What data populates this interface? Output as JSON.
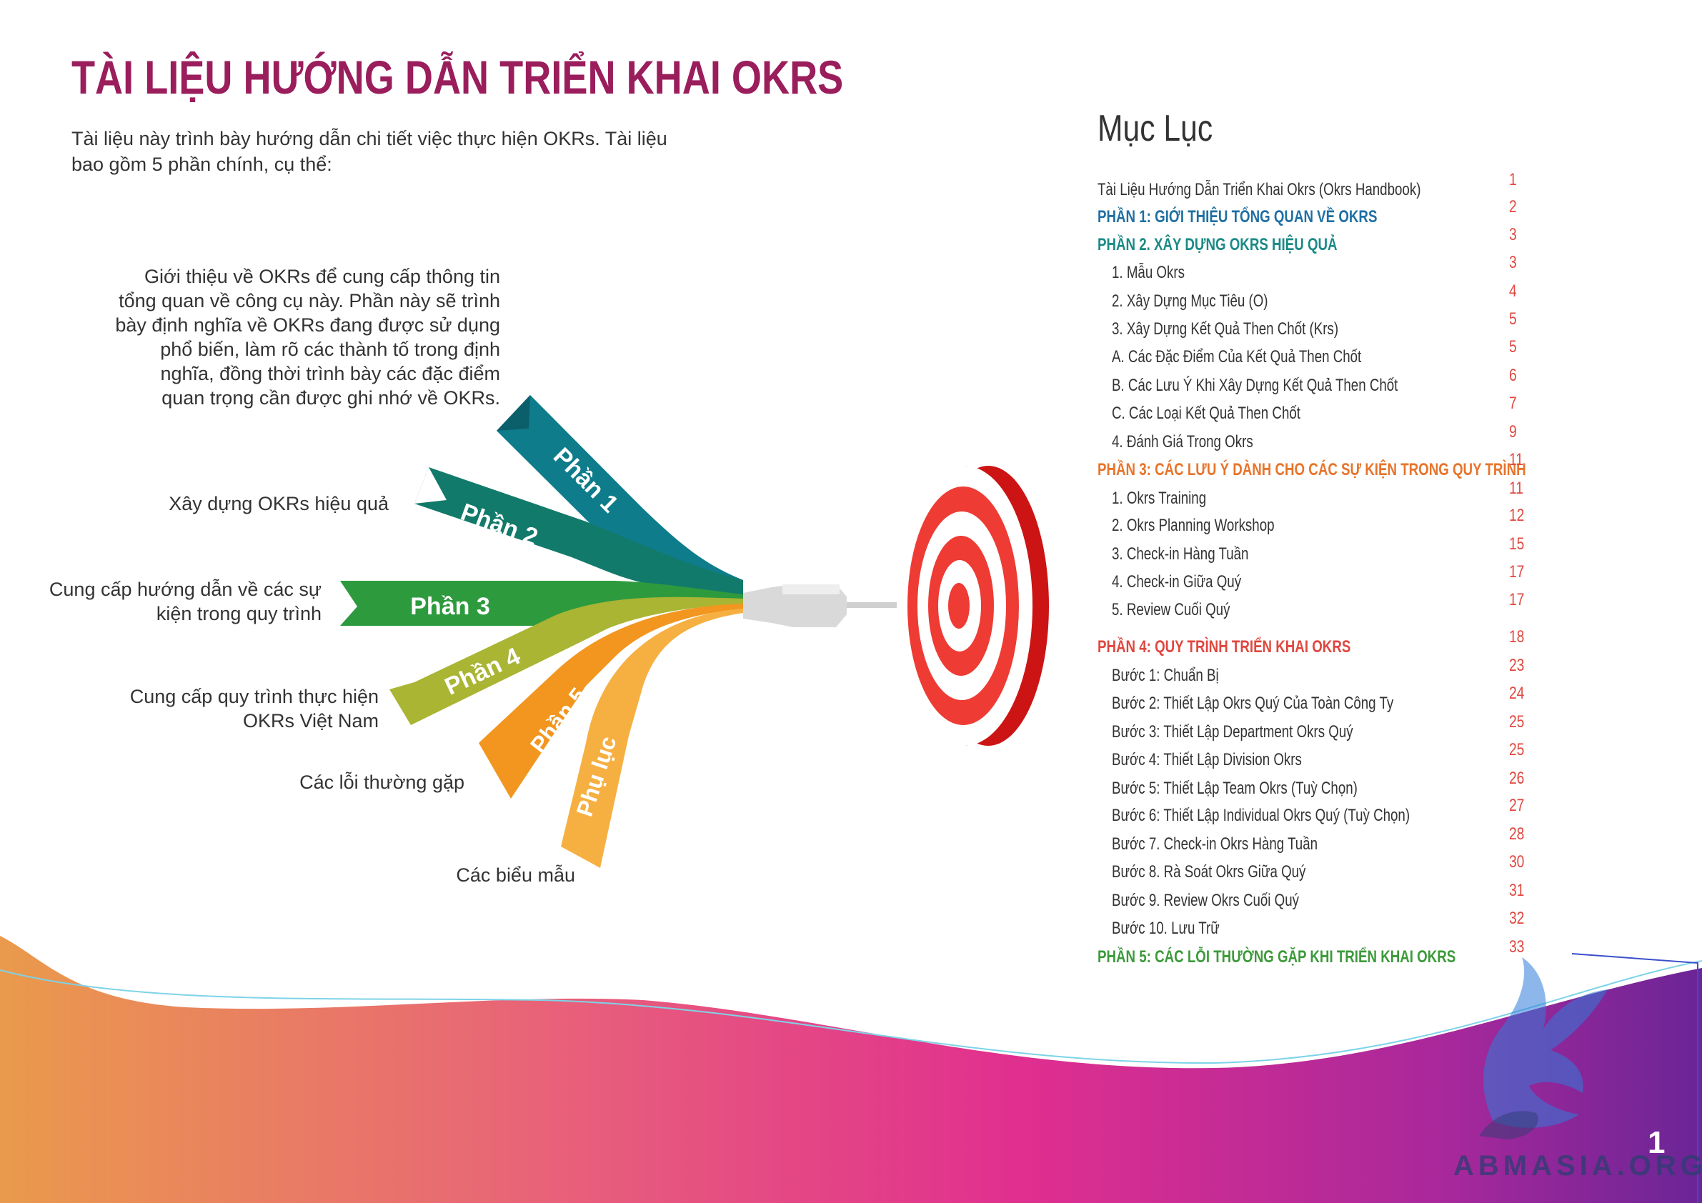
{
  "title": "TÀI LIỆU HƯỚNG DẪN TRIỂN KHAI OKRS",
  "intro": "Tài liệu này trình bày hướng dẫn chi tiết việc thực hiện OKRs. Tài liệu bao gồm 5 phần chính, cụ thể:",
  "colors": {
    "title": "#9a1d5c",
    "part1": "#0e7c8a",
    "part2": "#127a6a",
    "part3": "#2e9a3e",
    "part4": "#a9b533",
    "part5": "#f2961f",
    "appendix": "#f6b042",
    "toc_blue": "#1f6fa3",
    "toc_teal": "#1a8a86",
    "toc_orange": "#e8742a",
    "toc_red": "#e0473f",
    "toc_green": "#3c9a3a"
  },
  "ribbons": {
    "part1": "Phần 1",
    "part2": "Phần 2",
    "part3": "Phần 3",
    "part4": "Phần 4",
    "part5": "Phần 5",
    "appendix": "Phụ lục"
  },
  "descriptions": {
    "part1": [
      "Giới thiệu về OKRs để cung cấp thông tin",
      "tổng quan về công cụ này. Phần này sẽ trình",
      "bày định nghĩa về OKRs đang được sử dụng",
      "phổ biến, làm rõ các thành tố trong định",
      "nghĩa, đồng thời trình bày các đặc điểm",
      "quan trọng cần được ghi nhớ về OKRs."
    ],
    "part2": [
      "Xây dựng OKRs hiệu quả"
    ],
    "part3": [
      "Cung cấp hướng dẫn về các sự",
      "kiện trong quy trình"
    ],
    "part4": [
      "Cung cấp quy trình thực hiện",
      "OKRs Việt Nam"
    ],
    "part5": [
      "Các lỗi thường gặp"
    ],
    "appendix": [
      "Các biểu mẫu"
    ]
  },
  "toc": {
    "title": "Mục Lục",
    "items": [
      {
        "label": "Tài Liệu Hướng Dẫn Triển Khai Okrs (Okrs Handbook)",
        "page": "1",
        "style": "normal",
        "color": "#333333"
      },
      {
        "label": "PHẦN 1: GIỚI THIỆU TỔNG QUAN VỀ OKRS",
        "page": "2",
        "style": "sec",
        "color": "#1f6fa3"
      },
      {
        "label": "PHẦN 2. XÂY DỰNG OKRS HIỆU QUẢ",
        "page": "3",
        "style": "sec",
        "color": "#1a8a86"
      },
      {
        "label": "1. Mẫu Okrs",
        "page": "3",
        "style": "sub",
        "color": "#333333"
      },
      {
        "label": "2. Xây Dựng Mục Tiêu (O)",
        "page": "4",
        "style": "sub",
        "color": "#333333"
      },
      {
        "label": "3. Xây Dựng Kết Quả Then Chốt (Krs)",
        "page": "5",
        "style": "sub",
        "color": "#333333"
      },
      {
        "label": "A. Các Đặc Điểm Của Kết Quả Then Chốt",
        "page": "5",
        "style": "sub",
        "color": "#333333"
      },
      {
        "label": "B. Các Lưu Ý Khi Xây Dựng Kết Quả Then Chốt",
        "page": "6",
        "style": "sub",
        "color": "#333333"
      },
      {
        "label": "C. Các Loại Kết Quả Then Chốt",
        "page": "7",
        "style": "sub",
        "color": "#333333"
      },
      {
        "label": "4. Đánh Giá Trong Okrs",
        "page": "9",
        "style": "sub",
        "color": "#333333"
      },
      {
        "label": "PHẦN 3: CÁC LƯU Ý DÀNH CHO CÁC SỰ KIỆN TRONG QUY TRÌNH",
        "page": "11",
        "style": "sec",
        "color": "#e8742a"
      },
      {
        "label": "1. Okrs Training",
        "page": "11",
        "style": "sub",
        "color": "#333333"
      },
      {
        "label": "2. Okrs Planning Workshop",
        "page": "12",
        "style": "sub",
        "color": "#333333"
      },
      {
        "label": "3. Check-in Hàng Tuần",
        "page": "15",
        "style": "sub",
        "color": "#333333"
      },
      {
        "label": "4. Check-in Giữa Quý",
        "page": "17",
        "style": "sub",
        "color": "#333333"
      },
      {
        "label": "5. Review Cuối Quý",
        "page": "17",
        "style": "sub",
        "color": "#333333"
      },
      {
        "label": "PHẦN 4: QUY TRÌNH TRIỂN KHAI OKRS",
        "page": "18",
        "style": "sec",
        "color": "#e0473f"
      },
      {
        "label": "Bước 1: Chuẩn Bị",
        "page": "23",
        "style": "sub",
        "color": "#333333"
      },
      {
        "label": "Bước 2: Thiết Lập Okrs Quý Của Toàn Công Ty",
        "page": "24",
        "style": "sub",
        "color": "#333333"
      },
      {
        "label": "Bước 3: Thiết Lập Department Okrs Quý",
        "page": "25",
        "style": "sub",
        "color": "#333333"
      },
      {
        "label": "Bước 4: Thiết Lập Division Okrs",
        "page": "25",
        "style": "sub",
        "color": "#333333"
      },
      {
        "label": "Bước 5: Thiết Lập Team Okrs (Tuỳ Chọn)",
        "page": "26",
        "style": "sub",
        "color": "#333333"
      },
      {
        "label": "Bước 6: Thiết Lập Individual Okrs Quý (Tuỳ Chọn)",
        "page": "27",
        "style": "sub",
        "color": "#333333"
      },
      {
        "label": "Bước 7. Check-in Okrs Hàng Tuần",
        "page": "28",
        "style": "sub",
        "color": "#333333"
      },
      {
        "label": "Bước 8. Rà Soát Okrs Giữa Quý",
        "page": "30",
        "style": "sub",
        "color": "#333333"
      },
      {
        "label": "Bước 9. Review Okrs Cuối Quý",
        "page": "31",
        "style": "sub",
        "color": "#333333"
      },
      {
        "label": "Bước 10. Lưu Trữ",
        "page": "32",
        "style": "sub",
        "color": "#333333"
      },
      {
        "label": "PHẦN 5: CÁC LỖI THƯỜNG GẶP KHI TRIỂN KHAI OKRS",
        "page": "33",
        "style": "sec",
        "color": "#3c9a3a"
      }
    ]
  },
  "page_number": "1",
  "watermark": "ABMASIA.ORG"
}
